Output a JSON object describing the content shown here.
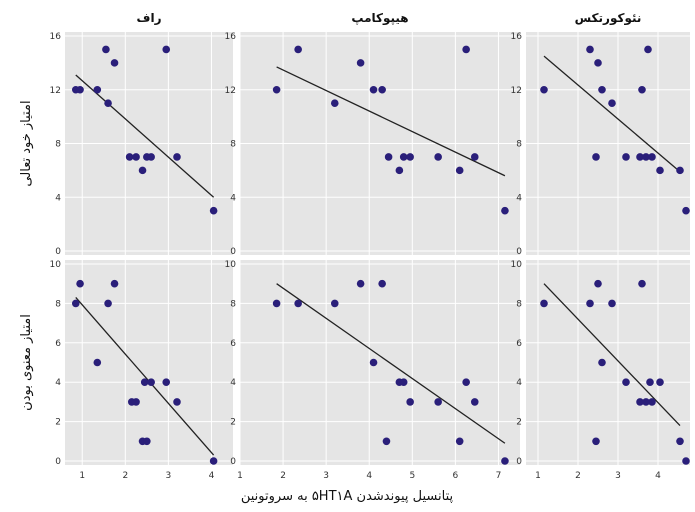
{
  "chart_data": {
    "type": "scatter",
    "facet_columns": [
      "راف",
      "هیپوکامپ",
      "نئوکورتکس"
    ],
    "xlabel": "پتانسیل پیوندشدن ۵HT۱A به سروتونین",
    "xticks": [
      1,
      2,
      3,
      4,
      5,
      6,
      7
    ],
    "rows": [
      {
        "ylabel": "امتیاز خود تعالی",
        "ylim": [
          0,
          16
        ],
        "yticks": [
          0,
          4,
          8,
          12,
          16
        ],
        "panels": [
          {
            "xlim": [
              0.6,
              4.5
            ],
            "points": [
              [
                0.85,
                12
              ],
              [
                0.95,
                12
              ],
              [
                1.35,
                12
              ],
              [
                1.55,
                15
              ],
              [
                1.6,
                11
              ],
              [
                1.75,
                14
              ],
              [
                2.1,
                7
              ],
              [
                2.25,
                7
              ],
              [
                2.4,
                6
              ],
              [
                2.5,
                7
              ],
              [
                2.6,
                7
              ],
              [
                2.95,
                15
              ],
              [
                3.2,
                7
              ],
              [
                4.05,
                3
              ]
            ],
            "fit": [
              [
                0.85,
                13.1
              ],
              [
                4.05,
                4.0
              ]
            ]
          },
          {
            "xlim": [
              1.0,
              7.5
            ],
            "points": [
              [
                1.85,
                12
              ],
              [
                2.35,
                15
              ],
              [
                3.2,
                11
              ],
              [
                3.8,
                14
              ],
              [
                4.1,
                12
              ],
              [
                4.3,
                12
              ],
              [
                4.45,
                7
              ],
              [
                4.7,
                6
              ],
              [
                4.8,
                7
              ],
              [
                4.95,
                7
              ],
              [
                5.6,
                7
              ],
              [
                6.1,
                6
              ],
              [
                6.25,
                15
              ],
              [
                6.45,
                7
              ],
              [
                7.15,
                3
              ]
            ],
            "fit": [
              [
                1.85,
                13.7
              ],
              [
                7.15,
                5.6
              ]
            ]
          },
          {
            "xlim": [
              0.7,
              4.8
            ],
            "points": [
              [
                1.15,
                12
              ],
              [
                2.3,
                15
              ],
              [
                2.45,
                7
              ],
              [
                2.5,
                14
              ],
              [
                2.6,
                12
              ],
              [
                2.85,
                11
              ],
              [
                3.2,
                7
              ],
              [
                3.55,
                7
              ],
              [
                3.6,
                12
              ],
              [
                3.7,
                7
              ],
              [
                3.75,
                15
              ],
              [
                3.85,
                7
              ],
              [
                4.05,
                6
              ],
              [
                4.55,
                6
              ],
              [
                4.7,
                3
              ]
            ],
            "fit": [
              [
                1.15,
                14.5
              ],
              [
                4.55,
                5.9
              ]
            ]
          }
        ]
      },
      {
        "ylabel": "امتیاز معنوی بودن",
        "ylim": [
          0,
          10
        ],
        "yticks": [
          0,
          2,
          4,
          6,
          8,
          10
        ],
        "panels": [
          {
            "xlim": [
              0.6,
              4.5
            ],
            "points": [
              [
                0.85,
                8
              ],
              [
                0.95,
                9
              ],
              [
                1.35,
                5
              ],
              [
                1.6,
                8
              ],
              [
                1.75,
                9
              ],
              [
                2.15,
                3
              ],
              [
                2.25,
                3
              ],
              [
                2.4,
                1
              ],
              [
                2.5,
                1
              ],
              [
                2.45,
                4
              ],
              [
                2.6,
                4
              ],
              [
                2.95,
                4
              ],
              [
                3.2,
                3
              ],
              [
                4.05,
                0
              ]
            ],
            "fit": [
              [
                0.85,
                8.3
              ],
              [
                4.05,
                0.3
              ]
            ]
          },
          {
            "xlim": [
              1.0,
              7.5
            ],
            "points": [
              [
                1.85,
                8
              ],
              [
                2.35,
                8
              ],
              [
                3.2,
                8
              ],
              [
                3.8,
                9
              ],
              [
                4.1,
                5
              ],
              [
                4.3,
                9
              ],
              [
                4.4,
                1
              ],
              [
                4.7,
                4
              ],
              [
                4.8,
                4
              ],
              [
                4.95,
                3
              ],
              [
                5.6,
                3
              ],
              [
                6.1,
                1
              ],
              [
                6.25,
                4
              ],
              [
                6.45,
                3
              ],
              [
                7.15,
                0
              ]
            ],
            "fit": [
              [
                1.85,
                9.0
              ],
              [
                7.15,
                0.9
              ]
            ]
          },
          {
            "xlim": [
              0.7,
              4.8
            ],
            "points": [
              [
                1.15,
                8
              ],
              [
                2.3,
                8
              ],
              [
                2.45,
                1
              ],
              [
                2.5,
                9
              ],
              [
                2.6,
                5
              ],
              [
                2.85,
                8
              ],
              [
                3.2,
                4
              ],
              [
                3.55,
                3
              ],
              [
                3.6,
                9
              ],
              [
                3.7,
                3
              ],
              [
                3.8,
                4
              ],
              [
                3.85,
                3
              ],
              [
                4.05,
                4
              ],
              [
                4.55,
                1
              ],
              [
                4.7,
                0
              ]
            ],
            "fit": [
              [
                1.15,
                9.0
              ],
              [
                4.55,
                1.8
              ]
            ]
          }
        ]
      }
    ]
  }
}
